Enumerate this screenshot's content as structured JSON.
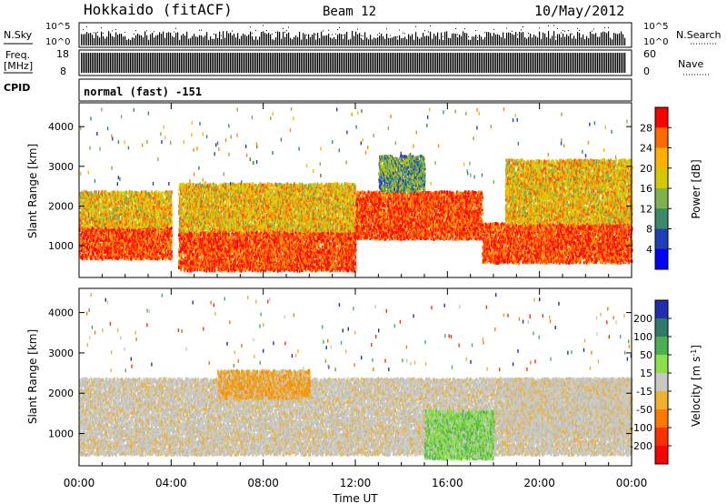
{
  "header": {
    "station": "Hokkaido (fitACF)",
    "beam": "Beam 12",
    "date": "10/May/2012"
  },
  "top_panels": {
    "nsky_label": "N.Sky",
    "nsky_ticks": [
      "10^5",
      "10^0"
    ],
    "nsearch_label": "N.Search",
    "nsearch_ticks": [
      "10^5",
      "10^0"
    ],
    "freq_label_top": "Freq.",
    "freq_label_unit": "[MHz]",
    "freq_ticks": [
      "18",
      "8"
    ],
    "nave_label": "Nave",
    "nave_ticks": [
      "60",
      "0"
    ],
    "cpid_label": "CPID",
    "cpid_text": "normal (fast) -151"
  },
  "chart_data": [
    {
      "type": "heatmap",
      "name": "power-panel",
      "ylabel": "Slant Range [km]",
      "xlabel": "",
      "ylim": [
        200,
        4600
      ],
      "yticks": [
        1000,
        2000,
        3000,
        4000
      ],
      "xticks": [
        "00:00",
        "04:00",
        "08:00",
        "12:00",
        "16:00",
        "20:00",
        "00:00"
      ],
      "colorbar": {
        "label": "Power [dB]",
        "ticks": [
          "28",
          "24",
          "20",
          "16",
          "12",
          "8",
          "4"
        ],
        "colors": [
          "#ff0000",
          "#ff6a00",
          "#ffb000",
          "#d6c800",
          "#7fb24a",
          "#3a8a6a",
          "#1f3fb8",
          "#0000ff"
        ]
      },
      "bands": [
        {
          "t0": 0.0,
          "t1": 4.0,
          "r0": 700,
          "r1": 1500,
          "value": "high"
        },
        {
          "t0": 0.0,
          "t1": 4.0,
          "r0": 1500,
          "r1": 2400,
          "value": "medium"
        },
        {
          "t0": 4.3,
          "t1": 12.0,
          "r0": 400,
          "r1": 1400,
          "value": "high"
        },
        {
          "t0": 4.3,
          "t1": 12.0,
          "r0": 1400,
          "r1": 2600,
          "value": "medium"
        },
        {
          "t0": 12.0,
          "t1": 17.5,
          "r0": 1200,
          "r1": 2400,
          "value": "high"
        },
        {
          "t0": 13.0,
          "t1": 15.0,
          "r0": 2400,
          "r1": 3300,
          "value": "low"
        },
        {
          "t0": 17.5,
          "t1": 24.0,
          "r0": 600,
          "r1": 1600,
          "value": "high"
        },
        {
          "t0": 18.5,
          "t1": 24.0,
          "r0": 1600,
          "r1": 3200,
          "value": "medium"
        }
      ]
    },
    {
      "type": "heatmap",
      "name": "velocity-panel",
      "ylabel": "Slant Range [km]",
      "xlabel": "Time UT",
      "ylim": [
        200,
        4600
      ],
      "yticks": [
        1000,
        2000,
        3000,
        4000
      ],
      "xticks": [
        "00:00",
        "04:00",
        "08:00",
        "12:00",
        "16:00",
        "20:00",
        "00:00"
      ],
      "colorbar": {
        "label": "Velocity [m s^-1]",
        "ticks": [
          "200",
          "100",
          "50",
          "15",
          "-15",
          "-50",
          "-100",
          "-200"
        ],
        "colors": [
          "#1f2fb0",
          "#2f7a6a",
          "#4caf50",
          "#8be04a",
          "#c8c8c0",
          "#f0b030",
          "#ff7a00",
          "#ff3000",
          "#ff0000"
        ]
      },
      "bands": [
        {
          "t0": 0.0,
          "t1": 24.0,
          "r0": 500,
          "r1": 2400,
          "value": "near-zero"
        },
        {
          "t0": 6.0,
          "t1": 10.0,
          "r0": 1900,
          "r1": 2600,
          "value": "negative"
        },
        {
          "t0": 15.0,
          "t1": 18.0,
          "r0": 400,
          "r1": 1600,
          "value": "positive"
        },
        {
          "t0": 18.5,
          "t1": 24.0,
          "r0": 1000,
          "r1": 2400,
          "value": "near-zero"
        }
      ]
    }
  ]
}
